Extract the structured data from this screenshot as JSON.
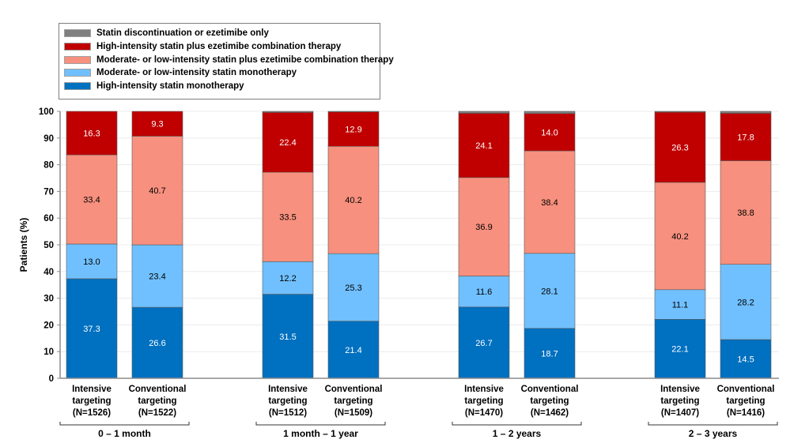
{
  "chart_data": {
    "type": "bar",
    "stacked": true,
    "title": "",
    "xlabel": "",
    "ylabel": "Patients (%)",
    "ylim": [
      0,
      100
    ],
    "yticks": [
      0,
      10,
      20,
      30,
      40,
      50,
      60,
      70,
      80,
      90,
      100
    ],
    "grid": true,
    "legend_position": "top-left",
    "groups": [
      {
        "label": "0 – 1 month",
        "bars": [
          0,
          1
        ]
      },
      {
        "label": "1 month – 1 year",
        "bars": [
          2,
          3
        ]
      },
      {
        "label": "1 – 2 years",
        "bars": [
          4,
          5
        ]
      },
      {
        "label": "2 – 3 years",
        "bars": [
          6,
          7
        ]
      }
    ],
    "categories": [
      {
        "line1": "Intensive",
        "line2": "targeting",
        "line3": "(N=1526)"
      },
      {
        "line1": "Conventional",
        "line2": "targeting",
        "line3": "(N=1522)"
      },
      {
        "line1": "Intensive",
        "line2": "targeting",
        "line3": "(N=1512)"
      },
      {
        "line1": "Conventional",
        "line2": "targeting",
        "line3": "(N=1509)"
      },
      {
        "line1": "Intensive",
        "line2": "targeting",
        "line3": "(N=1470)"
      },
      {
        "line1": "Conventional",
        "line2": "targeting",
        "line3": "(N=1462)"
      },
      {
        "line1": "Intensive",
        "line2": "targeting",
        "line3": "(N=1407)"
      },
      {
        "line1": "Conventional",
        "line2": "targeting",
        "line3": "(N=1416)"
      }
    ],
    "series": [
      {
        "name": "High-intensity statin monotherapy",
        "color": "#0070c0",
        "label_color": "#ffffff",
        "values": [
          37.3,
          26.6,
          31.5,
          21.4,
          26.7,
          18.7,
          22.1,
          14.5
        ],
        "show_labels": true
      },
      {
        "name": "Moderate- or low-intensity statin monotherapy",
        "color": "#70c0ff",
        "label_color": "#000000",
        "values": [
          13.0,
          23.4,
          12.2,
          25.3,
          11.6,
          28.1,
          11.1,
          28.2
        ],
        "show_labels": true
      },
      {
        "name": "Moderate- or low-intensity statin plus ezetimibe combination therapy",
        "color": "#f7907e",
        "label_color": "#000000",
        "values": [
          33.4,
          40.7,
          33.5,
          40.2,
          36.9,
          38.4,
          40.2,
          38.8
        ],
        "show_labels": true
      },
      {
        "name": "High-intensity statin plus ezetimibe combination therapy",
        "color": "#c00000",
        "label_color": "#ffffff",
        "values": [
          16.3,
          9.3,
          22.4,
          12.9,
          24.1,
          14.0,
          26.3,
          17.8
        ],
        "show_labels": true
      },
      {
        "name": "Statin discontinuation or ezetimibe only",
        "color": "#808080",
        "label_color": "#ffffff",
        "values": [
          0.0,
          0.0,
          0.4,
          0.2,
          0.7,
          0.8,
          0.3,
          0.7
        ],
        "show_labels": false
      }
    ],
    "legend_order": [
      4,
      3,
      2,
      1,
      0
    ]
  }
}
